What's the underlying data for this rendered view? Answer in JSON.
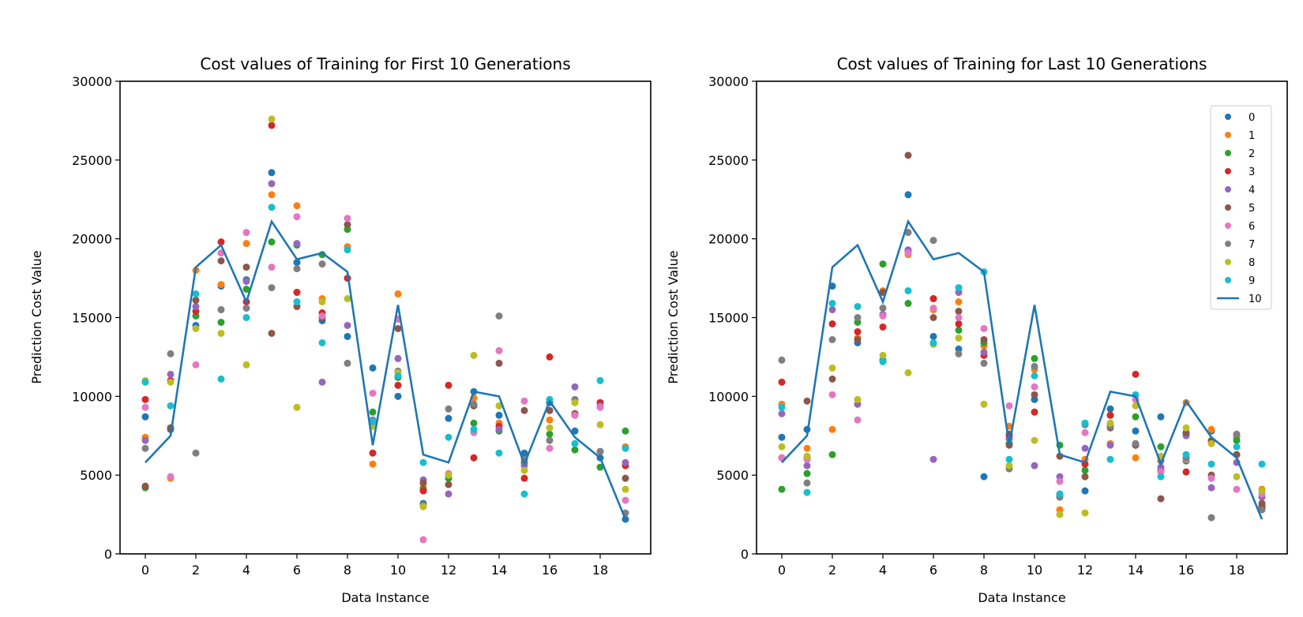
{
  "colors": [
    "#1f77b4",
    "#ff7f0e",
    "#2ca02c",
    "#d62728",
    "#9467bd",
    "#8c564b",
    "#e377c2",
    "#7f7f7f",
    "#bcbd22",
    "#17becf"
  ],
  "line_color": "#1f77b4",
  "chart_data": [
    {
      "type": "scatter",
      "title": "Cost values of Training for First 10 Generations",
      "xlabel": "Data Instance",
      "ylabel": "Prediction Cost Value",
      "xlim": [
        -1,
        20
      ],
      "ylim": [
        0,
        30000
      ],
      "xticks": [
        0,
        2,
        4,
        6,
        8,
        10,
        12,
        14,
        16,
        18
      ],
      "yticks": [
        0,
        5000,
        10000,
        15000,
        20000,
        25000,
        30000
      ],
      "legend": null,
      "line": {
        "name": "10",
        "values": [
          5800,
          7500,
          18200,
          19600,
          16000,
          21100,
          18700,
          19100,
          17900,
          6900,
          15800,
          6300,
          5800,
          10300,
          10000,
          5700,
          9700,
          7400,
          6100,
          2200
        ]
      },
      "series": [
        {
          "name": "0",
          "values": [
            8700,
            7900,
            14500,
            17000,
            17400,
            24200,
            18500,
            14800,
            13800,
            11800,
            10000,
            3200,
            8600,
            10300,
            8800,
            6400,
            9600,
            7800,
            6100,
            2200
          ]
        },
        {
          "name": "1",
          "values": [
            7400,
            4800,
            18000,
            17100,
            19700,
            22800,
            22100,
            16200,
            19500,
            5700,
            16500,
            4200,
            4800,
            9900,
            8300,
            5800,
            8500,
            8800,
            9600,
            6800
          ]
        },
        {
          "name": "2",
          "values": [
            4200,
            8000,
            15100,
            14700,
            16800,
            19800,
            19600,
            19000,
            20600,
            9000,
            11200,
            4100,
            4800,
            8300,
            7800,
            5800,
            7600,
            6600,
            5500,
            7800
          ]
        },
        {
          "name": "3",
          "values": [
            9800,
            11000,
            15400,
            19800,
            16000,
            27200,
            16600,
            15300,
            17500,
            6400,
            10700,
            4000,
            10700,
            6100,
            8100,
            4800,
            12500,
            8900,
            9600,
            5600
          ]
        },
        {
          "name": "4",
          "values": [
            7200,
            11400,
            15700,
            19100,
            17300,
            23500,
            19700,
            10900,
            14500,
            8500,
            12400,
            4700,
            3800,
            9400,
            7900,
            5600,
            9100,
            10600,
            9400,
            5800
          ]
        },
        {
          "name": "5",
          "values": [
            4300,
            8000,
            16100,
            18600,
            18200,
            14000,
            15700,
            15000,
            20900,
            8300,
            14300,
            4500,
            4400,
            9400,
            12100,
            9100,
            9100,
            8900,
            6500,
            4800
          ]
        },
        {
          "name": "6",
          "values": [
            9300,
            4900,
            12000,
            19100,
            20400,
            18200,
            21400,
            15100,
            21300,
            10200,
            14900,
            900,
            5100,
            7700,
            12900,
            9700,
            6700,
            8800,
            9300,
            3400
          ]
        },
        {
          "name": "7",
          "values": [
            6700,
            12700,
            6400,
            15500,
            15600,
            16900,
            18100,
            18400,
            12100,
            8200,
            11600,
            3100,
            9200,
            9500,
            15100,
            6000,
            7200,
            9800,
            6500,
            2600
          ]
        },
        {
          "name": "8",
          "values": [
            11000,
            10900,
            14300,
            14000,
            12000,
            27600,
            9300,
            16000,
            16200,
            8100,
            11500,
            3000,
            5000,
            12600,
            9400,
            5300,
            8000,
            9600,
            8200,
            4100
          ]
        },
        {
          "name": "9",
          "values": [
            10900,
            9400,
            16500,
            11100,
            15000,
            22000,
            16000,
            13400,
            19300,
            8400,
            11300,
            5800,
            7400,
            7900,
            6400,
            3800,
            9800,
            7000,
            11000,
            6700
          ]
        }
      ]
    },
    {
      "type": "scatter",
      "title": "Cost values of Training for Last 10 Generations",
      "xlabel": "Data Instance",
      "ylabel": "Prediction Cost Value",
      "xlim": [
        -1,
        20
      ],
      "ylim": [
        0,
        30000
      ],
      "xticks": [
        0,
        2,
        4,
        6,
        8,
        10,
        12,
        14,
        16,
        18
      ],
      "yticks": [
        0,
        5000,
        10000,
        15000,
        20000,
        25000,
        30000
      ],
      "legend": "top-right",
      "legend_entries": [
        "0",
        "1",
        "2",
        "3",
        "4",
        "5",
        "6",
        "7",
        "8",
        "9",
        "10"
      ],
      "line": {
        "name": "10",
        "values": [
          5800,
          7500,
          18200,
          19600,
          16000,
          21100,
          18700,
          19100,
          17900,
          6900,
          15800,
          6300,
          5800,
          10300,
          10000,
          5700,
          9700,
          7400,
          6100,
          2200
        ]
      },
      "series": [
        {
          "name": "0",
          "values": [
            7400,
            7900,
            17000,
            13400,
            12300,
            22800,
            13800,
            13000,
            4900,
            7600,
            9800,
            3700,
            4000,
            9200,
            7800,
            8700,
            7600,
            7800,
            7400,
            3000
          ]
        },
        {
          "name": "1",
          "values": [
            9500,
            6700,
            7900,
            13700,
            16700,
            19000,
            15500,
            16000,
            13200,
            8100,
            11700,
            2800,
            6000,
            7000,
            6100,
            6100,
            9600,
            7900,
            7500,
            4100
          ]
        },
        {
          "name": "2",
          "values": [
            4100,
            5100,
            6300,
            14700,
            18400,
            15900,
            16200,
            14200,
            13400,
            7000,
            12400,
            6900,
            5300,
            8800,
            8700,
            6800,
            5900,
            7200,
            7200,
            3000
          ]
        },
        {
          "name": "3",
          "values": [
            10900,
            6100,
            14600,
            14100,
            14400,
            19200,
            16200,
            14600,
            12600,
            7500,
            9000,
            3800,
            5700,
            8800,
            11400,
            5300,
            5200,
            7100,
            6300,
            2900
          ]
        },
        {
          "name": "4",
          "values": [
            8900,
            5600,
            15500,
            9500,
            15200,
            19300,
            6000,
            16600,
            12800,
            7300,
            5600,
            4900,
            6700,
            6900,
            6900,
            5500,
            7500,
            4200,
            5800,
            3600
          ]
        },
        {
          "name": "5",
          "values": [
            6100,
            9700,
            11100,
            13600,
            16600,
            25300,
            15000,
            15400,
            13600,
            6900,
            10100,
            6200,
            4900,
            8000,
            6900,
            3500,
            7700,
            5000,
            6300,
            3200
          ]
        },
        {
          "name": "6",
          "values": [
            6100,
            6000,
            10100,
            8500,
            15100,
            19100,
            15600,
            15000,
            14300,
            9400,
            10600,
            4600,
            7700,
            8200,
            9800,
            5200,
            6000,
            4800,
            4100,
            3800
          ]
        },
        {
          "name": "7",
          "values": [
            12300,
            4500,
            13600,
            15000,
            15600,
            20400,
            19900,
            12700,
            12100,
            5400,
            11900,
            3600,
            8200,
            8100,
            7000,
            5900,
            6100,
            2300,
            7600,
            2800
          ]
        },
        {
          "name": "8",
          "values": [
            6800,
            6200,
            11800,
            9800,
            12600,
            11500,
            13300,
            13700,
            9500,
            5600,
            7200,
            2500,
            2600,
            8300,
            9400,
            6200,
            8000,
            7000,
            4900,
            4000
          ]
        },
        {
          "name": "9",
          "values": [
            9300,
            3900,
            15900,
            15700,
            12200,
            16700,
            13400,
            16900,
            17900,
            6000,
            11300,
            3800,
            8300,
            6000,
            10100,
            4900,
            6300,
            5700,
            6800,
            5700
          ]
        }
      ]
    }
  ]
}
